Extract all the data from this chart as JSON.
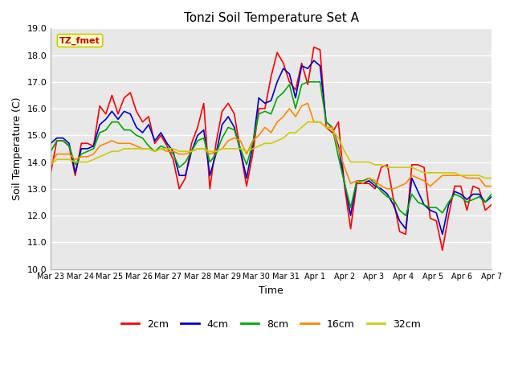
{
  "title": "Tonzi Soil Temperature Set A",
  "xlabel": "Time",
  "ylabel": "Soil Temperature (C)",
  "ylim": [
    10.0,
    19.0
  ],
  "yticks": [
    10.0,
    11.0,
    12.0,
    13.0,
    14.0,
    15.0,
    16.0,
    17.0,
    18.0,
    19.0
  ],
  "x_labels": [
    "Mar 23",
    "Mar 24",
    "Mar 25",
    "Mar 26",
    "Mar 27",
    "Mar 28",
    "Mar 29",
    "Mar 30",
    "Mar 31",
    "Apr 1",
    "Apr 2",
    "Apr 3",
    "Apr 4",
    "Apr 5",
    "Apr 6",
    "Apr 7"
  ],
  "annotation_text": "TZ_fmet",
  "annotation_color": "#cc0000",
  "annotation_bg": "#ffffcc",
  "annotation_border": "#cccc00",
  "line_colors": [
    "#ff0000",
    "#0000cc",
    "#00aa00",
    "#ff8800",
    "#cccc00"
  ],
  "line_labels": [
    "2cm",
    "4cm",
    "8cm",
    "16cm",
    "32cm"
  ],
  "fig_bg": "#ffffff",
  "plot_bg": "#e8e8e8",
  "grid_color": "#ffffff",
  "2cm": [
    13.6,
    14.8,
    14.8,
    14.6,
    13.5,
    14.7,
    14.7,
    14.6,
    16.1,
    15.8,
    16.5,
    15.8,
    16.4,
    16.6,
    15.9,
    15.5,
    15.7,
    14.7,
    15.0,
    14.6,
    14.1,
    13.0,
    13.4,
    14.7,
    15.3,
    16.2,
    13.0,
    14.7,
    15.9,
    16.2,
    15.8,
    14.4,
    13.1,
    14.3,
    16.0,
    16.0,
    17.2,
    18.1,
    17.7,
    17.0,
    16.7,
    17.7,
    16.9,
    18.3,
    18.2,
    15.3,
    15.1,
    15.5,
    13.1,
    11.5,
    13.2,
    13.2,
    13.2,
    13.0,
    13.8,
    13.9,
    12.6,
    11.4,
    11.3,
    13.9,
    13.9,
    13.8,
    11.9,
    11.8,
    10.7,
    12.0,
    13.1,
    13.1,
    12.2,
    13.1,
    13.0,
    12.2,
    12.4
  ],
  "4cm": [
    14.7,
    14.9,
    14.9,
    14.7,
    13.6,
    14.5,
    14.5,
    14.6,
    15.4,
    15.6,
    15.9,
    15.6,
    15.9,
    15.8,
    15.3,
    15.1,
    15.4,
    14.8,
    15.1,
    14.7,
    14.4,
    13.5,
    13.5,
    14.4,
    15.0,
    15.2,
    13.5,
    14.3,
    15.4,
    15.7,
    15.3,
    14.4,
    13.4,
    14.6,
    16.4,
    16.2,
    16.3,
    17.0,
    17.5,
    17.3,
    16.4,
    17.6,
    17.5,
    17.8,
    17.6,
    15.5,
    15.3,
    14.6,
    13.2,
    12.0,
    13.3,
    13.2,
    13.3,
    13.1,
    13.0,
    12.8,
    12.4,
    11.8,
    11.5,
    13.4,
    12.9,
    12.4,
    12.2,
    12.1,
    11.3,
    12.4,
    12.9,
    12.8,
    12.6,
    12.8,
    12.8,
    12.5,
    12.7
  ],
  "8cm": [
    14.4,
    14.8,
    14.8,
    14.6,
    13.9,
    14.3,
    14.4,
    14.5,
    15.1,
    15.2,
    15.5,
    15.5,
    15.2,
    15.2,
    15.0,
    14.9,
    14.6,
    14.4,
    14.6,
    14.5,
    14.3,
    13.8,
    14.0,
    14.4,
    14.8,
    14.9,
    14.0,
    14.3,
    14.9,
    15.3,
    15.2,
    14.5,
    13.9,
    14.7,
    15.8,
    15.9,
    15.8,
    16.4,
    16.6,
    16.9,
    16.0,
    16.9,
    17.0,
    17.0,
    17.0,
    15.5,
    15.3,
    14.2,
    13.2,
    12.3,
    13.3,
    13.3,
    13.4,
    13.2,
    12.9,
    12.7,
    12.6,
    12.2,
    12.0,
    12.8,
    12.5,
    12.4,
    12.3,
    12.3,
    12.1,
    12.5,
    12.8,
    12.7,
    12.5,
    12.6,
    12.7,
    12.5,
    12.8
  ],
  "16cm": [
    13.9,
    14.3,
    14.3,
    14.3,
    14.1,
    14.2,
    14.2,
    14.3,
    14.6,
    14.7,
    14.8,
    14.7,
    14.7,
    14.7,
    14.6,
    14.5,
    14.5,
    14.4,
    14.5,
    14.4,
    14.4,
    14.3,
    14.3,
    14.4,
    14.5,
    14.5,
    14.3,
    14.4,
    14.5,
    14.8,
    14.9,
    14.8,
    14.3,
    14.8,
    15.0,
    15.3,
    15.1,
    15.5,
    15.7,
    16.0,
    15.7,
    16.1,
    16.2,
    15.5,
    15.5,
    15.3,
    15.3,
    14.5,
    13.8,
    13.2,
    13.3,
    13.2,
    13.4,
    13.3,
    13.1,
    13.0,
    13.0,
    13.1,
    13.2,
    13.5,
    13.4,
    13.3,
    13.1,
    13.3,
    13.5,
    13.5,
    13.5,
    13.5,
    13.4,
    13.4,
    13.4,
    13.1,
    13.1
  ],
  "32cm": [
    13.9,
    14.1,
    14.1,
    14.1,
    14.0,
    14.0,
    14.0,
    14.1,
    14.2,
    14.3,
    14.4,
    14.4,
    14.5,
    14.5,
    14.5,
    14.5,
    14.5,
    14.4,
    14.5,
    14.5,
    14.5,
    14.4,
    14.4,
    14.4,
    14.5,
    14.5,
    14.4,
    14.4,
    14.5,
    14.5,
    14.5,
    14.5,
    14.4,
    14.5,
    14.6,
    14.7,
    14.7,
    14.8,
    14.9,
    15.1,
    15.1,
    15.3,
    15.5,
    15.5,
    15.5,
    15.3,
    15.2,
    14.9,
    14.4,
    14.0,
    14.0,
    14.0,
    14.0,
    13.9,
    13.9,
    13.8,
    13.8,
    13.8,
    13.8,
    13.8,
    13.7,
    13.6,
    13.6,
    13.6,
    13.6,
    13.6,
    13.6,
    13.5,
    13.5,
    13.5,
    13.5,
    13.4,
    13.4
  ]
}
